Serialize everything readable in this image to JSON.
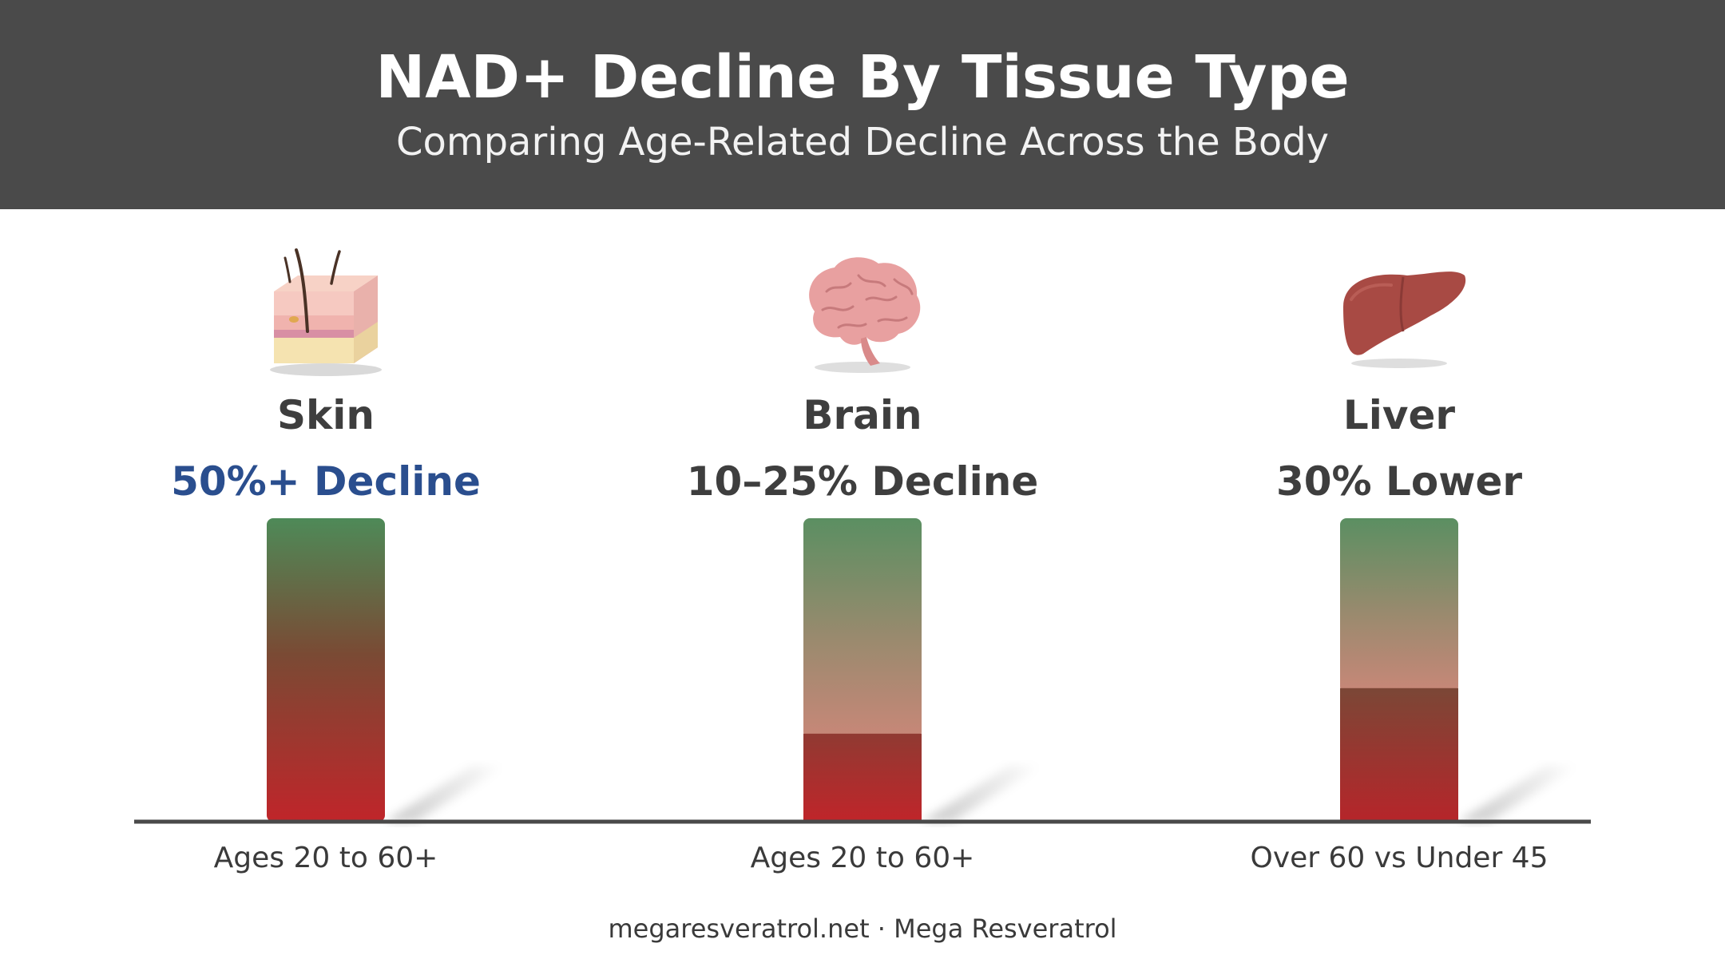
{
  "header": {
    "title": "NAD+ Decline By Tissue Type",
    "subtitle": "Comparing Age-Related Decline Across the Body"
  },
  "chart_data": {
    "type": "bar",
    "title": "NAD+ Decline By Tissue Type",
    "subtitle": "Comparing Age-Related Decline Across the Body",
    "categories": [
      "Skin",
      "Brain",
      "Liver"
    ],
    "decline_labels": [
      "50%+ Decline",
      "10–25% Decline",
      "30% Lower"
    ],
    "age_labels": [
      "Ages 20 to 60+",
      "Ages 20 to 60+",
      "Over 60 vs Under 45"
    ],
    "values": [
      100,
      100,
      100
    ],
    "remaining_fraction": [
      0,
      0.29,
      0.44
    ],
    "icons": [
      "skin-icon",
      "brain-icon",
      "liver-icon"
    ],
    "colors": {
      "top": "#4e8a58",
      "bottom": "#c0252a",
      "highlight": "#2a4e8e",
      "baseline": "#4a4a4a"
    },
    "grid": false
  },
  "footer": {
    "text": "megaresveratrol.net · Mega Resveratrol"
  }
}
